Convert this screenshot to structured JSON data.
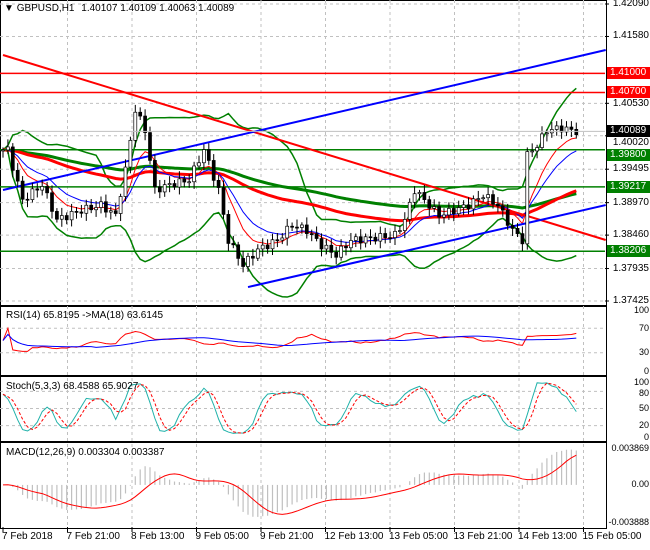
{
  "header": {
    "symbol": "GBPUSD,H1",
    "ohlc": "1.40107 1.40109 1.40063 1.40089"
  },
  "chart_data": [
    {
      "type": "candlestick",
      "title": "GBPUSD,H1",
      "ylim": [
        1.37425,
        1.4209
      ],
      "y_ticks": [
        "1.42090",
        "1.41580",
        "1.40530",
        "1.40020",
        "1.39495",
        "1.38970",
        "1.38460",
        "1.37935",
        "1.37425"
      ],
      "x_ticks": [
        "7 Feb 2018",
        "7 Feb 21:00",
        "8 Feb 13:00",
        "9 Feb 05:00",
        "9 Feb 21:00",
        "12 Feb 13:00",
        "13 Feb 05:00",
        "13 Feb 21:00",
        "14 Feb 13:00",
        "15 Feb 05:00"
      ],
      "bars": 118,
      "close_anchors": [
        [
          1,
          1.398
        ],
        [
          4,
          1.3901
        ],
        [
          8,
          1.3925
        ],
        [
          11,
          1.387
        ],
        [
          16,
          1.3885
        ],
        [
          20,
          1.3893
        ],
        [
          23,
          1.3877
        ],
        [
          25,
          1.3948
        ],
        [
          27,
          1.4043
        ],
        [
          29,
          1.4011
        ],
        [
          31,
          1.3917
        ],
        [
          34,
          1.3925
        ],
        [
          38,
          1.3933
        ],
        [
          41,
          1.398
        ],
        [
          44,
          1.3917
        ],
        [
          46,
          1.3838
        ],
        [
          49,
          1.3799
        ],
        [
          52,
          1.3823
        ],
        [
          56,
          1.3838
        ],
        [
          59,
          1.3862
        ],
        [
          62,
          1.3854
        ],
        [
          65,
          1.383
        ],
        [
          68,
          1.3815
        ],
        [
          71,
          1.3838
        ],
        [
          75,
          1.3841
        ],
        [
          80,
          1.3846
        ],
        [
          82,
          1.387
        ],
        [
          84,
          1.3917
        ],
        [
          86,
          1.3901
        ],
        [
          89,
          1.3877
        ],
        [
          92,
          1.3885
        ],
        [
          95,
          1.3893
        ],
        [
          98,
          1.3909
        ],
        [
          101,
          1.3893
        ],
        [
          104,
          1.3854
        ],
        [
          106,
          1.3838
        ],
        [
          107,
          1.3972
        ],
        [
          109,
          1.3987
        ],
        [
          111,
          1.4011
        ],
        [
          114,
          1.4014
        ],
        [
          117,
          1.4009
        ]
      ],
      "levels": [
        {
          "price": 1.41,
          "label": "1.41000",
          "color": "#ff0000"
        },
        {
          "price": 1.407,
          "label": "1.40700",
          "color": "#ff0000"
        },
        {
          "price": 1.398,
          "label": "1.39800",
          "color": "#008000"
        },
        {
          "price": 1.39217,
          "label": "1.39217",
          "color": "#008000"
        },
        {
          "price": 1.38206,
          "label": "1.38206",
          "color": "#008000"
        }
      ],
      "trendlines": [
        {
          "from": [
            0,
            1.41289
          ],
          "to": [
            123,
            1.38383
          ],
          "color": "#ff0000"
        },
        {
          "from": [
            0,
            1.39168
          ],
          "to": [
            123,
            1.41367
          ],
          "color": "#0000ff"
        },
        {
          "from": [
            50,
            1.37644
          ],
          "to": [
            123,
            1.38932
          ],
          "color": "#0000ff"
        }
      ],
      "current_price": {
        "value": 1.40089,
        "label": "1.40089"
      }
    },
    {
      "type": "line",
      "title": "RSI(14) 65.8195  ->MA(18) 63.6145",
      "ylim": [
        0,
        100
      ],
      "y_ticks": [
        "100",
        "70",
        "30",
        "0"
      ]
    },
    {
      "type": "line",
      "title": "Stoch(5,3,3) 68.4588 65.9027",
      "ylim": [
        0,
        100
      ],
      "y_ticks": [
        "100",
        "80",
        "50",
        "20",
        "0"
      ]
    },
    {
      "type": "histogram",
      "title": "MACD(12,26,9) 0.003304 0.003387",
      "ylim": [
        -0.003888,
        0.003869
      ],
      "y_ticks": [
        "0.003869",
        "0.00",
        "-0.003888"
      ]
    }
  ],
  "colors": {
    "bull": "#ffffff",
    "bear": "#000000",
    "ma_red": "#ff0000",
    "ma_green": "#008000",
    "bands": "#008000",
    "rsi": "#ff0000",
    "rsi_ma": "#0000ff",
    "stoch_main": "#20b2aa",
    "stoch_signal": "#ff0000",
    "macd_hist": "#c0c0c0",
    "macd_signal": "#ff0000"
  }
}
